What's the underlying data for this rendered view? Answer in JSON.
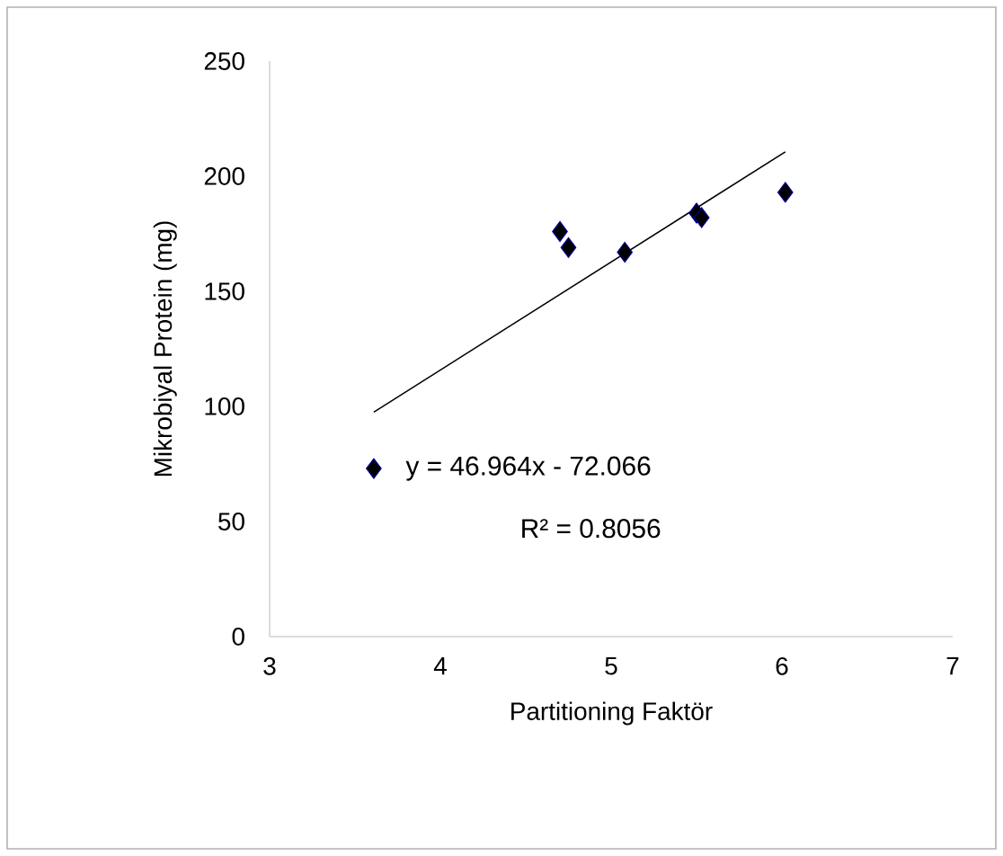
{
  "chart_data": {
    "type": "scatter",
    "xlabel": "Partitioning Faktör",
    "ylabel": "Mikrobiyal Protein (mg)",
    "xlim": [
      3,
      7
    ],
    "ylim": [
      0,
      250
    ],
    "xticks": [
      3,
      4,
      5,
      6,
      7
    ],
    "yticks": [
      0,
      50,
      100,
      150,
      200,
      250
    ],
    "grid": false,
    "series": [
      {
        "marker": "diamond",
        "color": "#000000",
        "x": [
          3.61,
          4.7,
          4.75,
          5.08,
          5.5,
          5.53,
          6.02
        ],
        "values": [
          73,
          176,
          169,
          167,
          184,
          182,
          193
        ]
      },
      {
        "type": "line",
        "color": "#000000",
        "line_style": "solid",
        "x": [
          3.61,
          6.02
        ],
        "values": [
          97.5,
          210.6
        ]
      }
    ],
    "annotations": [
      "y = 46.964x - 72.066",
      "R² = 0.8056"
    ]
  }
}
